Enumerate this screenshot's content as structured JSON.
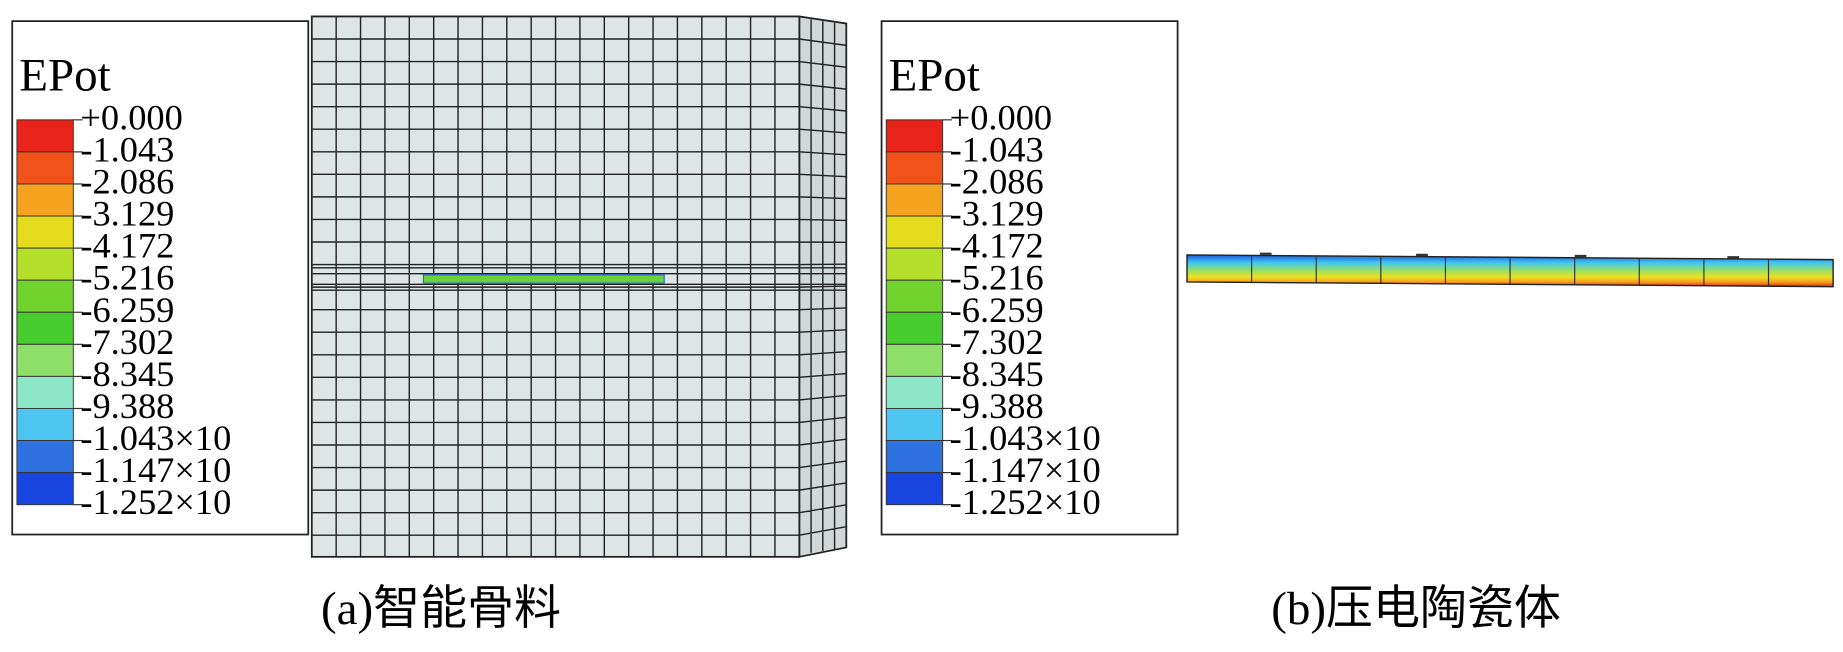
{
  "panels": [
    {
      "legend": {
        "title": "EPot",
        "labels": [
          "+0.000",
          "-1.043",
          "-2.086",
          "-3.129",
          "-4.172",
          "-5.216",
          "-6.259",
          "-7.302",
          "-8.345",
          "-9.388",
          "-1.043×10",
          "-1.147×10",
          "-1.252×10"
        ],
        "colors": [
          "#e8231a",
          "#f0521a",
          "#f5a21e",
          "#e6dc1e",
          "#b4e02c",
          "#72d22e",
          "#46cc2c",
          "#8ede6a",
          "#8ee6c8",
          "#4ec4f0",
          "#2e72e0",
          "#1844e0"
        ]
      },
      "caption": "(a)智能骨料"
    },
    {
      "legend": {
        "title": "EPot",
        "labels": [
          "+0.000",
          "-1.043",
          "-2.086",
          "-3.129",
          "-4.172",
          "-5.216",
          "-6.259",
          "-7.302",
          "-8.345",
          "-9.388",
          "-1.043×10",
          "-1.147×10",
          "-1.252×10"
        ],
        "colors": [
          "#e8231a",
          "#f0521a",
          "#f5a21e",
          "#e6dc1e",
          "#b4e02c",
          "#72d22e",
          "#46cc2c",
          "#8ede6a",
          "#8ee6c8",
          "#4ec4f0",
          "#2e72e0",
          "#1844e0"
        ]
      },
      "caption": "(b)压电陶瓷体"
    }
  ]
}
